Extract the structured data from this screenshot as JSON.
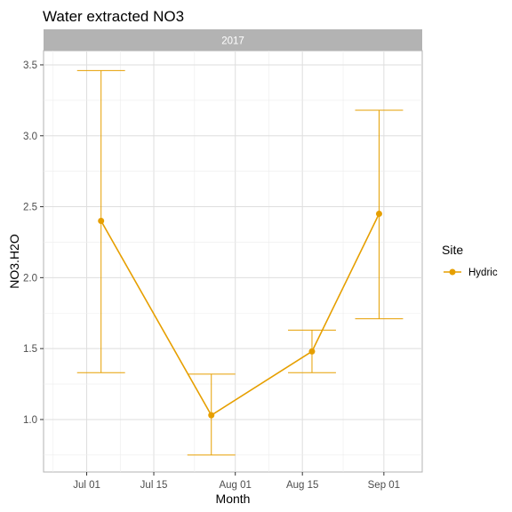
{
  "chart_data": {
    "type": "line",
    "title": "Water extracted NO3",
    "facet_label": "2017",
    "xlabel": "Month",
    "ylabel": "NO3.H2O",
    "x_tick_labels": [
      "Jul 01",
      "Jul 15",
      "Aug 01",
      "Aug 15",
      "Sep 01"
    ],
    "x_tick_dates": [
      "2017-07-01",
      "2017-07-15",
      "2017-08-01",
      "2017-08-15",
      "2017-09-01"
    ],
    "y_ticks": [
      1.0,
      1.5,
      2.0,
      2.5,
      3.0,
      3.5
    ],
    "y_tick_labels": [
      "1.0",
      "1.5",
      "2.0",
      "2.5",
      "3.0",
      "3.5"
    ],
    "xlim": [
      "2017-06-22",
      "2017-09-09"
    ],
    "ylim": [
      0.63,
      3.6
    ],
    "grid": true,
    "legend": {
      "title": "Site",
      "position": "right"
    },
    "series": [
      {
        "name": "Hydric",
        "color": "#E69F00",
        "points": [
          {
            "x": "2017-07-04",
            "y": 2.4,
            "ymin": 1.33,
            "ymax": 3.46
          },
          {
            "x": "2017-07-27",
            "y": 1.03,
            "ymin": 0.75,
            "ymax": 1.32
          },
          {
            "x": "2017-08-17",
            "y": 1.48,
            "ymin": 1.33,
            "ymax": 1.63
          },
          {
            "x": "2017-08-31",
            "y": 2.45,
            "ymin": 1.71,
            "ymax": 3.18
          }
        ]
      }
    ]
  }
}
